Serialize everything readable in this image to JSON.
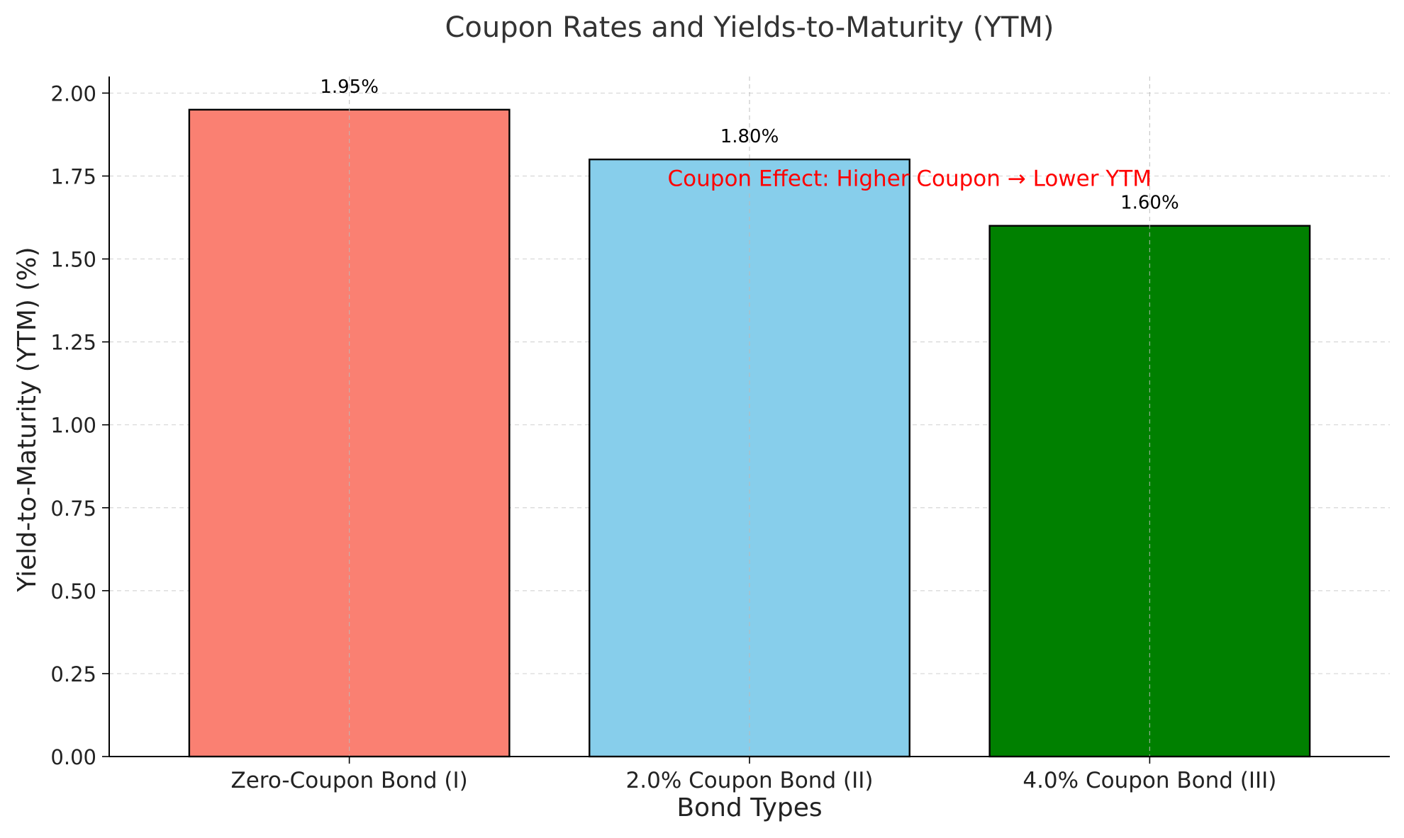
{
  "chart_data": {
    "type": "bar",
    "title": "Coupon Rates and Yields-to-Maturity (YTM)",
    "xlabel": "Bond Types",
    "ylabel": "Yield-to-Maturity (YTM) (%)",
    "categories": [
      "Zero-Coupon Bond (I)",
      "2.0% Coupon Bond (II)",
      "4.0% Coupon Bond (III)"
    ],
    "values": [
      1.95,
      1.8,
      1.6
    ],
    "data_labels": [
      "1.95%",
      "1.80%",
      "1.60%"
    ],
    "bar_colors": [
      "#fa8072",
      "#87ceeb",
      "#008000"
    ],
    "ylim": [
      0,
      2.05
    ],
    "yticks": [
      0.0,
      0.25,
      0.5,
      0.75,
      1.0,
      1.25,
      1.5,
      1.75,
      2.0
    ],
    "ytick_labels": [
      "0.00",
      "0.25",
      "0.50",
      "0.75",
      "1.00",
      "1.25",
      "1.50",
      "1.75",
      "2.00"
    ],
    "grid": true,
    "annotation": {
      "text": "Coupon Effect: Higher Coupon → Lower YTM",
      "color": "#ff0000",
      "x_category_index": 1.4,
      "y_value": 1.72
    }
  }
}
